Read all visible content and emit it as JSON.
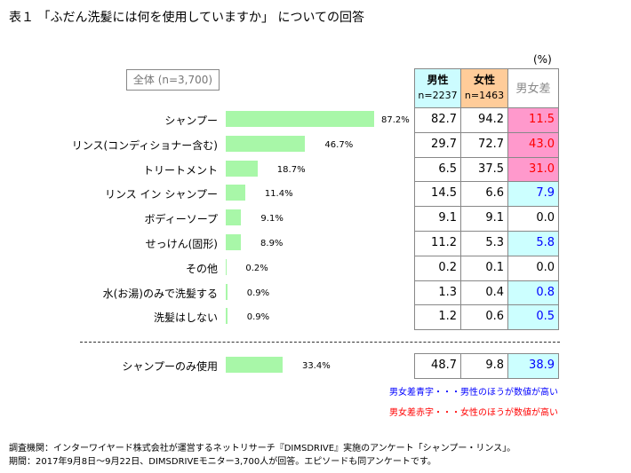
{
  "title": "表１ 「ふだん洗髪には何を使用していますか」 についての回答",
  "total_label": "全体 (n=3,700)",
  "unit": "(%)",
  "headers": {
    "male": "男性",
    "male_n": "n=2237",
    "female": "女性",
    "female_n": "n=1463",
    "diff": "男女差"
  },
  "colors": {
    "bar": "#a8f7a8",
    "male_header": "#ccfcff",
    "female_header": "#ffcc99",
    "female_higher": "#ff99cc",
    "male_higher": "#ccffff",
    "red_text": "#ff0000",
    "blue_text": "#0000ff"
  },
  "chart_data": {
    "type": "bar",
    "categories": [
      "シャンプー",
      "リンス(コンディショナー含む)",
      "トリートメント",
      "リンス イン シャンプー",
      "ボディーソープ",
      "せっけん(固形)",
      "その他",
      "水(お湯)のみで洗髪する",
      "洗髪はしない",
      "シャンプーのみ使用"
    ],
    "values": [
      87.2,
      46.7,
      18.7,
      11.4,
      9.1,
      8.9,
      0.2,
      0.9,
      0.9,
      33.4
    ],
    "value_labels": [
      "87.2%",
      "46.7%",
      "18.7%",
      "11.4%",
      "9.1%",
      "8.9%",
      "0.2%",
      "0.9%",
      "0.9%",
      "33.4%"
    ],
    "table": [
      {
        "male": "82.7",
        "female": "94.2",
        "diff": "11.5",
        "higher": "female"
      },
      {
        "male": "29.7",
        "female": "72.7",
        "diff": "43.0",
        "higher": "female"
      },
      {
        "male": "6.5",
        "female": "37.5",
        "diff": "31.0",
        "higher": "female"
      },
      {
        "male": "14.5",
        "female": "6.6",
        "diff": "7.9",
        "higher": "male"
      },
      {
        "male": "9.1",
        "female": "9.1",
        "diff": "0.0",
        "higher": "none"
      },
      {
        "male": "11.2",
        "female": "5.3",
        "diff": "5.8",
        "higher": "male"
      },
      {
        "male": "0.2",
        "female": "0.1",
        "diff": "0.0",
        "higher": "none"
      },
      {
        "male": "1.3",
        "female": "0.4",
        "diff": "0.8",
        "higher": "male"
      },
      {
        "male": "1.2",
        "female": "0.6",
        "diff": "0.5",
        "higher": "male"
      },
      {
        "male": "48.7",
        "female": "9.8",
        "diff": "38.9",
        "higher": "male"
      }
    ]
  },
  "notes": {
    "blue": "男女差青字・・・男性のほうが数値が高い",
    "red": "男女差赤字・・・女性のほうが数値が高い"
  },
  "footer": [
    "調査機関：インターワイヤード株式会社が運営するネットリサーチ『DIMSDRIVE』実施のアンケート「シャンプー・リンス」。",
    "期間：2017年9月8日～9月22日、DIMSDRIVEモニター3,700人が回答。エピソードも同アンケートです。"
  ]
}
